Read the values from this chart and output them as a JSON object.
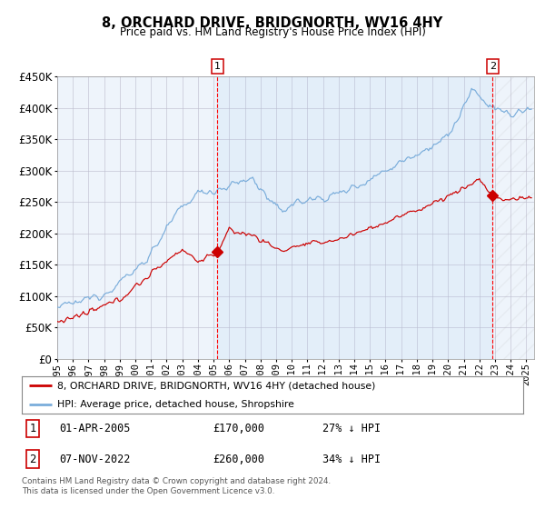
{
  "title": "8, ORCHARD DRIVE, BRIDGNORTH, WV16 4HY",
  "subtitle": "Price paid vs. HM Land Registry's House Price Index (HPI)",
  "red_line_color": "#cc0000",
  "blue_line_color": "#7aaddb",
  "plot_bg_color": "#eef4fb",
  "outer_bg_color": "#ffffff",
  "sale1_date_num": 2005.25,
  "sale1_price": 170000,
  "sale1_label": "1",
  "sale2_date_num": 2022.84,
  "sale2_price": 260000,
  "sale2_label": "2",
  "legend_line1": "8, ORCHARD DRIVE, BRIDGNORTH, WV16 4HY (detached house)",
  "legend_line2": "HPI: Average price, detached house, Shropshire",
  "table_row1_num": "1",
  "table_row1_date": "01-APR-2005",
  "table_row1_price": "£170,000",
  "table_row1_hpi": "27% ↓ HPI",
  "table_row2_num": "2",
  "table_row2_date": "07-NOV-2022",
  "table_row2_price": "£260,000",
  "table_row2_hpi": "34% ↓ HPI",
  "footer": "Contains HM Land Registry data © Crown copyright and database right 2024.\nThis data is licensed under the Open Government Licence v3.0.",
  "ylim": [
    0,
    450000
  ],
  "xlim_start": 1995.0,
  "xlim_end": 2025.5
}
